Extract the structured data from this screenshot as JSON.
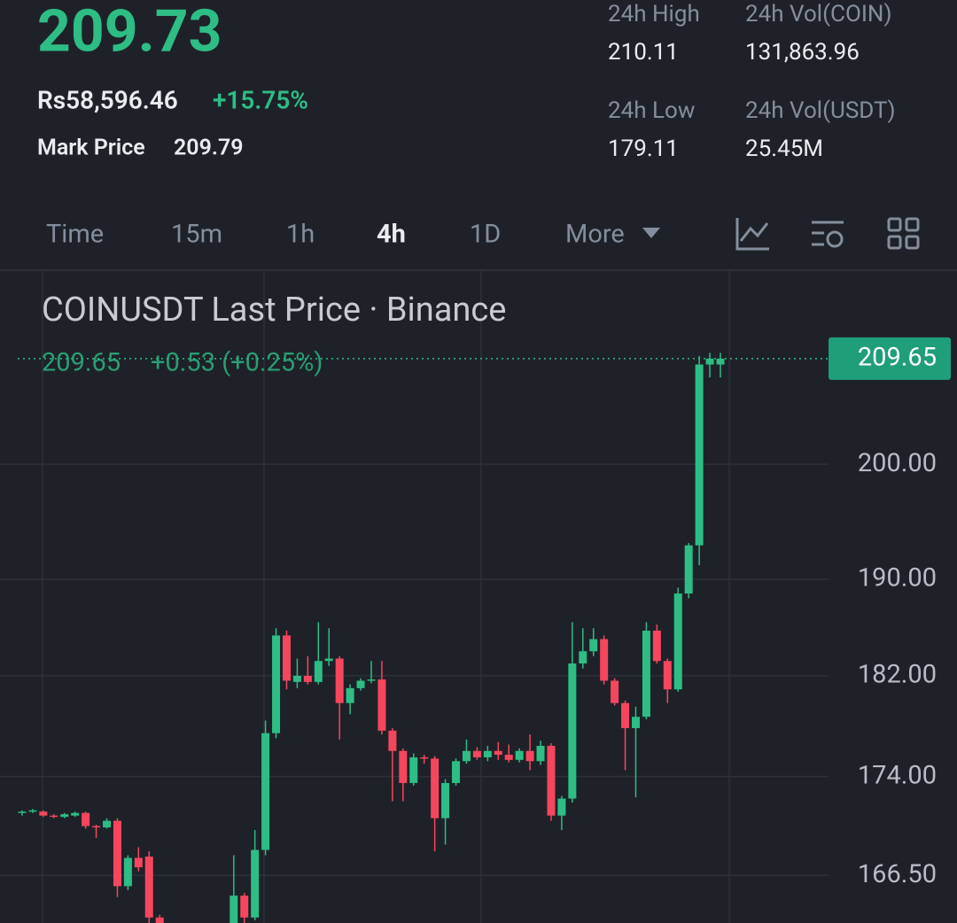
{
  "header": {
    "price": "209.73",
    "fiat_price": "Rs58,596.46",
    "change": "+15.75%",
    "mark_price_label": "Mark Price",
    "mark_price": "209.79",
    "stats": [
      {
        "label": "24h High",
        "value": "210.11"
      },
      {
        "label": "24h Vol(COIN)",
        "value": "131,863.96"
      },
      {
        "label": "24h Low",
        "value": "179.11"
      },
      {
        "label": "24h Vol(USDT)",
        "value": "25.45M"
      }
    ]
  },
  "tabs": [
    "Time",
    "15m",
    "1h",
    "4h",
    "1D",
    "More"
  ],
  "chart_data": {
    "type": "candlestick",
    "title": "COINUSDT Last Price · Binance",
    "legend_price": "209.65",
    "legend_change": "+0.53 (+0.25%)",
    "last_price": 209.65,
    "log_scale": true,
    "grid": true,
    "up_color": "#2ebd85",
    "down_color": "#f6465d",
    "ylim": [
      163.0,
      218.0
    ],
    "yticks": [
      {
        "value": 166.5,
        "label": "166.50"
      },
      {
        "value": 174,
        "label": "174.00"
      },
      {
        "value": 182,
        "label": "182.00"
      },
      {
        "value": 190,
        "label": "190.00"
      },
      {
        "value": 200,
        "label": "200.00"
      }
    ],
    "open": [
      171.2,
      171.3,
      171.3,
      171.0,
      170.9,
      171.0,
      171.2,
      170.2,
      170.1,
      170.6,
      165.7,
      167.8,
      167.9,
      163.4,
      null,
      null,
      null,
      null,
      null,
      null,
      162.6,
      165.0,
      163.4,
      168.4,
      177.4,
      185.3,
      181.5,
      182.0,
      181.5,
      183.2,
      183.4,
      179.8,
      181.0,
      181.6,
      181.7,
      177.6,
      176.0,
      173.5,
      175.5,
      175.4,
      170.8,
      173.5,
      175.2,
      176.0,
      175.5,
      176.0,
      175.7,
      175.3,
      176.0,
      175.2,
      176.4,
      171.0,
      172.3,
      183.0,
      184.0,
      185.0,
      181.6,
      179.8,
      177.8,
      178.7,
      185.7,
      183.2,
      180.9,
      188.8,
      192.9,
      209.1,
      209.1
    ],
    "high": [
      171.4,
      171.5,
      171.4,
      171.1,
      171.2,
      171.3,
      171.3,
      170.3,
      170.8,
      170.8,
      168.0,
      168.6,
      168.3,
      163.6,
      null,
      null,
      null,
      null,
      null,
      null,
      168.0,
      165.2,
      169.9,
      178.4,
      185.9,
      185.7,
      183.4,
      183.6,
      186.4,
      185.9,
      183.6,
      181.3,
      181.8,
      183.2,
      183.2,
      177.8,
      176.2,
      175.8,
      175.7,
      175.6,
      173.8,
      175.4,
      176.9,
      176.3,
      176.4,
      176.7,
      176.5,
      176.2,
      177.3,
      176.8,
      176.6,
      172.5,
      186.4,
      185.9,
      185.9,
      185.3,
      181.8,
      180.0,
      179.5,
      186.4,
      186.2,
      183.4,
      189.3,
      193.1,
      209.9,
      210.19,
      210.19
    ],
    "low": [
      171.0,
      171.2,
      170.9,
      170.8,
      170.8,
      170.9,
      170.0,
      169.3,
      170.0,
      164.9,
      165.4,
      166.8,
      162.5,
      161.0,
      null,
      null,
      null,
      null,
      null,
      null,
      162.0,
      163.0,
      163.2,
      168.0,
      177.0,
      180.9,
      181.0,
      181.3,
      181.3,
      182.8,
      176.9,
      178.9,
      180.8,
      181.4,
      177.3,
      172.1,
      172.1,
      173.3,
      175.0,
      168.3,
      168.8,
      173.3,
      175.0,
      175.3,
      175.2,
      175.3,
      175.1,
      175.1,
      174.5,
      174.9,
      170.6,
      169.9,
      172.0,
      182.6,
      183.6,
      181.3,
      179.6,
      174.5,
      172.4,
      178.5,
      183.0,
      179.8,
      180.7,
      188.4,
      191.2,
      207.9,
      207.9
    ],
    "close": [
      171.3,
      171.4,
      171.0,
      170.9,
      171.1,
      171.2,
      170.2,
      170.1,
      170.6,
      165.7,
      167.8,
      167.1,
      163.4,
      162.0,
      null,
      null,
      null,
      null,
      null,
      null,
      165.0,
      163.4,
      168.4,
      177.4,
      185.3,
      181.6,
      182.0,
      181.5,
      183.2,
      183.4,
      179.8,
      181.0,
      181.6,
      181.7,
      177.6,
      176.0,
      173.5,
      175.5,
      175.4,
      170.8,
      173.5,
      175.2,
      176.0,
      175.5,
      176.0,
      175.7,
      175.3,
      176.0,
      175.2,
      176.4,
      171.0,
      172.3,
      183.0,
      184.0,
      185.0,
      181.6,
      179.8,
      177.8,
      178.7,
      185.7,
      183.2,
      180.9,
      188.8,
      192.9,
      209.1,
      209.65,
      209.65
    ]
  }
}
